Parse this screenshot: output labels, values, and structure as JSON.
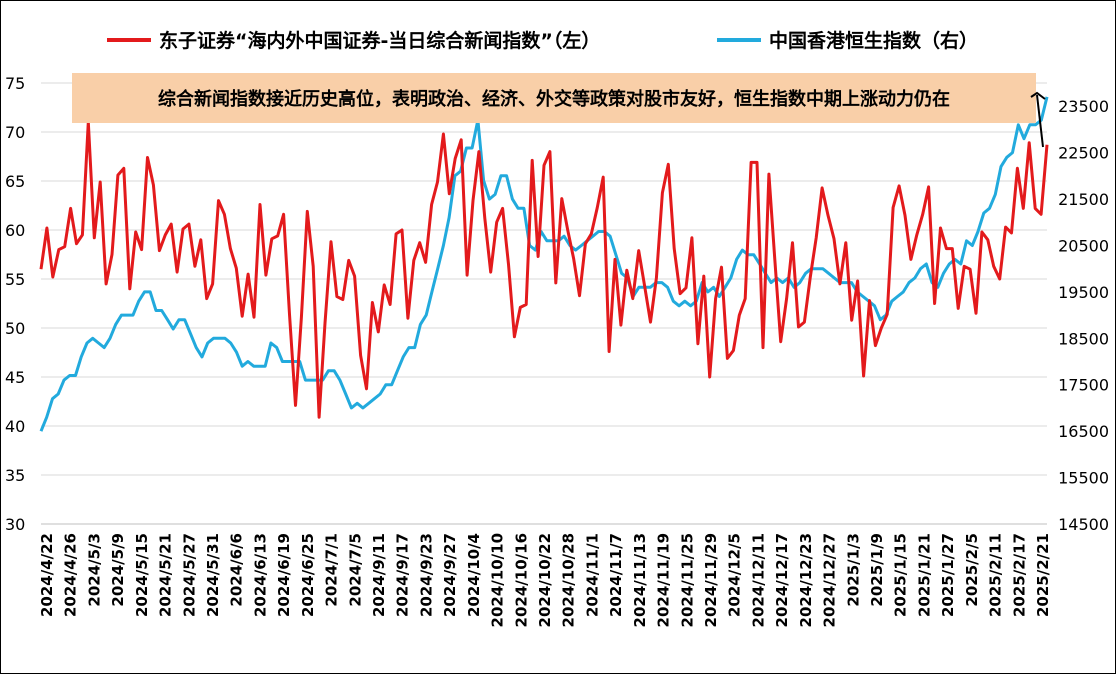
{
  "chart_data": {
    "type": "line",
    "annotation": "综合新闻指数接近历史高位，表明政治、经济、外交等政策对股市友好，恒生指数中期上涨动力仍在",
    "legend_position": "top",
    "grid": true,
    "y_left": {
      "range": [
        30,
        75
      ],
      "ticks": [
        "30",
        "35",
        "40",
        "45",
        "50",
        "55",
        "60",
        "65",
        "70",
        "75"
      ]
    },
    "y_right": {
      "range": [
        14500,
        24000
      ],
      "ticks": [
        "14500",
        "15500",
        "16500",
        "17500",
        "18500",
        "19500",
        "20500",
        "21500",
        "22500",
        "23500"
      ]
    },
    "x_tick_labels": [
      "2024/4/22",
      "2024/4/26",
      "2024/5/3",
      "2024/5/9",
      "2024/5/15",
      "2024/5/21",
      "2024/5/27",
      "2024/5/31",
      "2024/6/6",
      "2024/6/13",
      "2024/6/19",
      "2024/6/25",
      "2024/7/1",
      "2024/7/5",
      "2024/9/11",
      "2024/9/17",
      "2024/9/23",
      "2024/9/27",
      "2024/10/4",
      "2024/10/10",
      "2024/10/16",
      "2024/10/22",
      "2024/10/28",
      "2024/11/1",
      "2024/11/7",
      "2024/11/13",
      "2024/11/19",
      "2024/11/25",
      "2024/11/29",
      "2024/12/5",
      "2024/12/11",
      "2024/12/17",
      "2024/12/23",
      "2024/12/27",
      "2025/1/3",
      "2025/1/9",
      "2025/1/15",
      "2025/1/21",
      "2025/1/27",
      "2025/2/5",
      "2025/2/11",
      "2025/2/17",
      "2025/2/21"
    ],
    "series": [
      {
        "name": "东子证券“海内外中国证券-当日综合新闻指数”（左）",
        "axis": "left",
        "color": "#e31a1c",
        "values": [
          56.0,
          60.2,
          55.2,
          58.0,
          58.3,
          62.2,
          58.6,
          59.5,
          71.0,
          59.2,
          64.9,
          54.5,
          57.5,
          65.6,
          66.3,
          54.0,
          59.8,
          58.0,
          67.4,
          64.6,
          57.9,
          59.5,
          60.6,
          55.7,
          60.1,
          60.6,
          56.3,
          59.0,
          53.0,
          54.5,
          63.0,
          61.6,
          58.1,
          56.1,
          51.2,
          55.5,
          51.1,
          62.6,
          55.4,
          59.1,
          59.4,
          61.6,
          51.4,
          42.1,
          51.1,
          61.9,
          56.3,
          40.9,
          50.5,
          58.8,
          53.2,
          52.9,
          56.9,
          55.3,
          47.2,
          43.8,
          52.6,
          49.6,
          54.4,
          52.4,
          59.6,
          60.0,
          51.0,
          56.9,
          58.7,
          56.7,
          62.6,
          64.9,
          69.8,
          63.7,
          67.3,
          69.2,
          55.4,
          63.0,
          68.0,
          61.2,
          55.7,
          60.8,
          62.2,
          56.5,
          49.1,
          52.1,
          52.4,
          67.1,
          57.3,
          66.6,
          68.0,
          54.6,
          63.2,
          60.0,
          57.1,
          53.3,
          58.6,
          59.6,
          62.3,
          65.4,
          47.6,
          57.0,
          50.3,
          55.9,
          53.0,
          57.9,
          54.3,
          50.6,
          55.1,
          63.8,
          66.7,
          58.1,
          53.5,
          54.1,
          59.2,
          48.4,
          55.3,
          45.0,
          53.0,
          56.2,
          46.9,
          47.7,
          51.3,
          53.0,
          66.9,
          66.9,
          48.0,
          65.7,
          57.0,
          48.6,
          53.0,
          58.7,
          50.1,
          50.6,
          55.2,
          59.2,
          64.3,
          61.5,
          59.1,
          54.5,
          58.7,
          50.8,
          54.8,
          45.1,
          52.8,
          48.2,
          50.0,
          51.4,
          62.3,
          64.5,
          61.5,
          57.0,
          59.5,
          61.6,
          64.4,
          52.5,
          60.2,
          58.1,
          58.1,
          52.0,
          56.3,
          56.0,
          51.5,
          59.8,
          59.0,
          56.3,
          55.0,
          60.3,
          59.7,
          66.3,
          62.2,
          68.9,
          62.2,
          61.6,
          68.7
        ]
      },
      {
        "name": "中国香港恒生指数（右）",
        "axis": "right",
        "color": "#22aadd",
        "values": [
          16500,
          16800,
          17200,
          17300,
          17600,
          17700,
          17700,
          18100,
          18400,
          18500,
          18400,
          18300,
          18500,
          18800,
          19000,
          19000,
          19000,
          19300,
          19500,
          19500,
          19100,
          19100,
          18900,
          18700,
          18900,
          18900,
          18600,
          18300,
          18100,
          18400,
          18500,
          18500,
          18500,
          18400,
          18200,
          17900,
          18000,
          17900,
          17900,
          17900,
          18400,
          18300,
          18000,
          18000,
          18000,
          18000,
          17600,
          17600,
          17600,
          17600,
          17800,
          17800,
          17600,
          17300,
          17000,
          17100,
          17000,
          17100,
          17200,
          17300,
          17500,
          17500,
          17800,
          18100,
          18300,
          18300,
          18800,
          19000,
          19500,
          20000,
          20500,
          21100,
          22000,
          22100,
          22600,
          22600,
          23200,
          21900,
          21500,
          21600,
          22000,
          22000,
          21500,
          21300,
          21300,
          20500,
          20400,
          20800,
          20600,
          20600,
          20600,
          20700,
          20500,
          20400,
          20500,
          20600,
          20700,
          20800,
          20800,
          20700,
          20300,
          19900,
          19800,
          19400,
          19600,
          19600,
          19600,
          19700,
          19700,
          19600,
          19300,
          19200,
          19300,
          19200,
          19300,
          19700,
          19500,
          19600,
          19400,
          19600,
          19800,
          20200,
          20400,
          20300,
          20300,
          20100,
          19900,
          19700,
          19800,
          19700,
          19800,
          19600,
          19700,
          19900,
          20000,
          20000,
          20000,
          19900,
          19800,
          19700,
          19700,
          19700,
          19500,
          19400,
          19300,
          19200,
          18900,
          19000,
          19300,
          19400,
          19500,
          19700,
          19800,
          20000,
          20100,
          19700,
          19600,
          19900,
          20100,
          20200,
          20100,
          20600,
          20500,
          20800,
          21200,
          21300,
          21600,
          22200,
          22400,
          22500,
          23100,
          22800,
          23100,
          23100,
          23200,
          23700
        ]
      }
    ]
  }
}
